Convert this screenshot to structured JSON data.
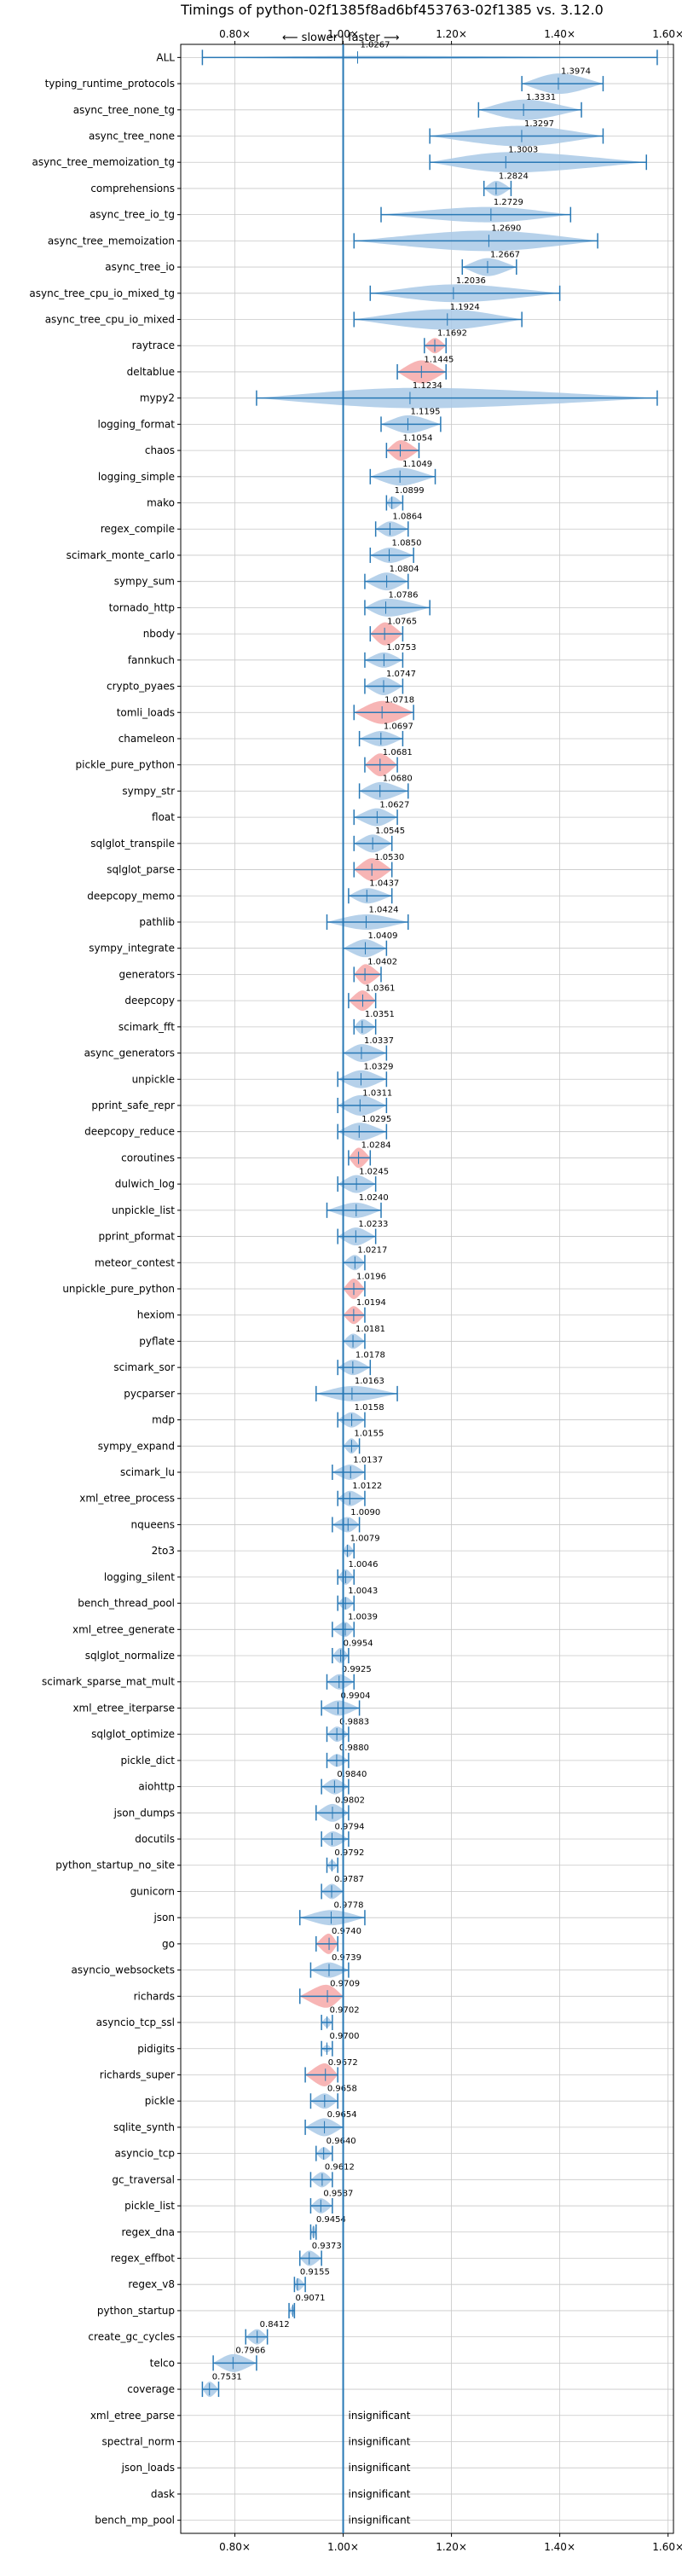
{
  "chart_data": {
    "type": "violin",
    "title": "Timings of python-02f1385f8ad6bf453763-02f1385 vs. 3.12.0",
    "direction_left": "⟵ slower",
    "direction_separator": "|",
    "direction_right": "faster ⟶",
    "xlabel": "",
    "ylabel": "",
    "xlim": [
      0.7,
      1.61
    ],
    "x_ticks": [
      0.8,
      1.0,
      1.2,
      1.4,
      1.6
    ],
    "x_tick_labels": [
      "0.80×",
      "1.00×",
      "1.20×",
      "1.40×",
      "1.60×"
    ],
    "grid": true,
    "reference_line": 1.0,
    "insignificant_label": "insignificant",
    "colors": {
      "normal": "#a9c9e6",
      "highlight": "#f6a8a8",
      "whisker": "#2878b5",
      "grid": "#c8c8c8"
    },
    "benchmarks": [
      {
        "name": "ALL",
        "value": 1.0267,
        "value_label": "1.0267",
        "min": 0.74,
        "max": 1.58,
        "width": 0.12,
        "highlight": false
      },
      {
        "name": "typing_runtime_protocols",
        "value": 1.3974,
        "value_label": "1.3974",
        "min": 1.33,
        "max": 1.48,
        "width": 0.8,
        "highlight": false
      },
      {
        "name": "async_tree_none_tg",
        "value": 1.3331,
        "value_label": "1.3331",
        "min": 1.25,
        "max": 1.44,
        "width": 0.8,
        "highlight": false
      },
      {
        "name": "async_tree_none",
        "value": 1.3297,
        "value_label": "1.3297",
        "min": 1.16,
        "max": 1.48,
        "width": 0.8,
        "highlight": false
      },
      {
        "name": "async_tree_memoization_tg",
        "value": 1.3003,
        "value_label": "1.3003",
        "min": 1.16,
        "max": 1.56,
        "width": 0.8,
        "highlight": false
      },
      {
        "name": "comprehensions",
        "value": 1.2824,
        "value_label": "1.2824",
        "min": 1.26,
        "max": 1.31,
        "width": 0.6,
        "highlight": false
      },
      {
        "name": "async_tree_io_tg",
        "value": 1.2729,
        "value_label": "1.2729",
        "min": 1.07,
        "max": 1.42,
        "width": 0.6,
        "highlight": false
      },
      {
        "name": "async_tree_memoization",
        "value": 1.269,
        "value_label": "1.2690",
        "min": 1.02,
        "max": 1.47,
        "width": 0.8,
        "highlight": false
      },
      {
        "name": "async_tree_io",
        "value": 1.2667,
        "value_label": "1.2667",
        "min": 1.22,
        "max": 1.32,
        "width": 0.7,
        "highlight": false
      },
      {
        "name": "async_tree_cpu_io_mixed_tg",
        "value": 1.2036,
        "value_label": "1.2036",
        "min": 1.05,
        "max": 1.4,
        "width": 0.7,
        "highlight": false
      },
      {
        "name": "async_tree_cpu_io_mixed",
        "value": 1.1924,
        "value_label": "1.1924",
        "min": 1.02,
        "max": 1.33,
        "width": 0.8,
        "highlight": false
      },
      {
        "name": "raytrace",
        "value": 1.1692,
        "value_label": "1.1692",
        "min": 1.15,
        "max": 1.19,
        "width": 0.6,
        "highlight": true
      },
      {
        "name": "deltablue",
        "value": 1.1445,
        "value_label": "1.1445",
        "min": 1.1,
        "max": 1.19,
        "width": 0.9,
        "highlight": true
      },
      {
        "name": "mypy2",
        "value": 1.1234,
        "value_label": "1.1234",
        "min": 0.84,
        "max": 1.58,
        "width": 0.8,
        "highlight": false
      },
      {
        "name": "logging_format",
        "value": 1.1195,
        "value_label": "1.1195",
        "min": 1.07,
        "max": 1.18,
        "width": 0.7,
        "highlight": false
      },
      {
        "name": "chaos",
        "value": 1.1054,
        "value_label": "1.1054",
        "min": 1.08,
        "max": 1.14,
        "width": 0.8,
        "highlight": true
      },
      {
        "name": "logging_simple",
        "value": 1.1049,
        "value_label": "1.1049",
        "min": 1.05,
        "max": 1.17,
        "width": 0.7,
        "highlight": false
      },
      {
        "name": "mako",
        "value": 1.0899,
        "value_label": "1.0899",
        "min": 1.08,
        "max": 1.11,
        "width": 0.5,
        "highlight": false
      },
      {
        "name": "regex_compile",
        "value": 1.0864,
        "value_label": "1.0864",
        "min": 1.06,
        "max": 1.12,
        "width": 0.6,
        "highlight": false
      },
      {
        "name": "scimark_monte_carlo",
        "value": 1.085,
        "value_label": "1.0850",
        "min": 1.05,
        "max": 1.13,
        "width": 0.6,
        "highlight": false
      },
      {
        "name": "sympy_sum",
        "value": 1.0804,
        "value_label": "1.0804",
        "min": 1.04,
        "max": 1.12,
        "width": 0.7,
        "highlight": false
      },
      {
        "name": "tornado_http",
        "value": 1.0786,
        "value_label": "1.0786",
        "min": 1.04,
        "max": 1.16,
        "width": 0.7,
        "highlight": false
      },
      {
        "name": "nbody",
        "value": 1.0765,
        "value_label": "1.0765",
        "min": 1.05,
        "max": 1.11,
        "width": 0.9,
        "highlight": true
      },
      {
        "name": "fannkuch",
        "value": 1.0753,
        "value_label": "1.0753",
        "min": 1.04,
        "max": 1.11,
        "width": 0.6,
        "highlight": false
      },
      {
        "name": "crypto_pyaes",
        "value": 1.0747,
        "value_label": "1.0747",
        "min": 1.04,
        "max": 1.11,
        "width": 0.7,
        "highlight": false
      },
      {
        "name": "tomli_loads",
        "value": 1.0718,
        "value_label": "1.0718",
        "min": 1.02,
        "max": 1.13,
        "width": 0.9,
        "highlight": true
      },
      {
        "name": "chameleon",
        "value": 1.0697,
        "value_label": "1.0697",
        "min": 1.03,
        "max": 1.11,
        "width": 0.6,
        "highlight": false
      },
      {
        "name": "pickle_pure_python",
        "value": 1.0681,
        "value_label": "1.0681",
        "min": 1.04,
        "max": 1.1,
        "width": 0.9,
        "highlight": true
      },
      {
        "name": "sympy_str",
        "value": 1.068,
        "value_label": "1.0680",
        "min": 1.03,
        "max": 1.12,
        "width": 0.7,
        "highlight": false
      },
      {
        "name": "float",
        "value": 1.0627,
        "value_label": "1.0627",
        "min": 1.02,
        "max": 1.1,
        "width": 0.7,
        "highlight": false
      },
      {
        "name": "sqlglot_transpile",
        "value": 1.0545,
        "value_label": "1.0545",
        "min": 1.02,
        "max": 1.09,
        "width": 0.7,
        "highlight": false
      },
      {
        "name": "sqlglot_parse",
        "value": 1.053,
        "value_label": "1.0530",
        "min": 1.02,
        "max": 1.09,
        "width": 0.9,
        "highlight": true
      },
      {
        "name": "deepcopy_memo",
        "value": 1.0437,
        "value_label": "1.0437",
        "min": 1.01,
        "max": 1.09,
        "width": 0.6,
        "highlight": false
      },
      {
        "name": "pathlib",
        "value": 1.0424,
        "value_label": "1.0424",
        "min": 0.97,
        "max": 1.12,
        "width": 0.6,
        "highlight": false
      },
      {
        "name": "sympy_integrate",
        "value": 1.0409,
        "value_label": "1.0409",
        "min": 1.0,
        "max": 1.08,
        "width": 0.7,
        "highlight": false
      },
      {
        "name": "generators",
        "value": 1.0402,
        "value_label": "1.0402",
        "min": 1.02,
        "max": 1.07,
        "width": 0.8,
        "highlight": true
      },
      {
        "name": "deepcopy",
        "value": 1.0361,
        "value_label": "1.0361",
        "min": 1.01,
        "max": 1.06,
        "width": 0.8,
        "highlight": true
      },
      {
        "name": "scimark_fft",
        "value": 1.0351,
        "value_label": "1.0351",
        "min": 1.02,
        "max": 1.06,
        "width": 0.6,
        "highlight": false
      },
      {
        "name": "async_generators",
        "value": 1.0337,
        "value_label": "1.0337",
        "min": 1.0,
        "max": 1.08,
        "width": 0.7,
        "highlight": false
      },
      {
        "name": "unpickle",
        "value": 1.0329,
        "value_label": "1.0329",
        "min": 0.99,
        "max": 1.08,
        "width": 0.7,
        "highlight": false
      },
      {
        "name": "pprint_safe_repr",
        "value": 1.0311,
        "value_label": "1.0311",
        "min": 0.99,
        "max": 1.08,
        "width": 0.8,
        "highlight": false
      },
      {
        "name": "deepcopy_reduce",
        "value": 1.0295,
        "value_label": "1.0295",
        "min": 0.99,
        "max": 1.08,
        "width": 0.7,
        "highlight": false
      },
      {
        "name": "coroutines",
        "value": 1.0284,
        "value_label": "1.0284",
        "min": 1.01,
        "max": 1.05,
        "width": 0.8,
        "highlight": true
      },
      {
        "name": "dulwich_log",
        "value": 1.0245,
        "value_label": "1.0245",
        "min": 0.99,
        "max": 1.06,
        "width": 0.7,
        "highlight": false
      },
      {
        "name": "unpickle_list",
        "value": 1.024,
        "value_label": "1.0240",
        "min": 0.97,
        "max": 1.07,
        "width": 0.6,
        "highlight": false
      },
      {
        "name": "pprint_pformat",
        "value": 1.0233,
        "value_label": "1.0233",
        "min": 0.99,
        "max": 1.06,
        "width": 0.7,
        "highlight": false
      },
      {
        "name": "meteor_contest",
        "value": 1.0217,
        "value_label": "1.0217",
        "min": 1.0,
        "max": 1.04,
        "width": 0.6,
        "highlight": false
      },
      {
        "name": "unpickle_pure_python",
        "value": 1.0196,
        "value_label": "1.0196",
        "min": 1.0,
        "max": 1.04,
        "width": 0.8,
        "highlight": true
      },
      {
        "name": "hexiom",
        "value": 1.0194,
        "value_label": "1.0194",
        "min": 1.0,
        "max": 1.04,
        "width": 0.7,
        "highlight": true
      },
      {
        "name": "pyflate",
        "value": 1.0181,
        "value_label": "1.0181",
        "min": 1.0,
        "max": 1.04,
        "width": 0.6,
        "highlight": false
      },
      {
        "name": "scimark_sor",
        "value": 1.0178,
        "value_label": "1.0178",
        "min": 0.99,
        "max": 1.05,
        "width": 0.6,
        "highlight": false
      },
      {
        "name": "pycparser",
        "value": 1.0163,
        "value_label": "1.0163",
        "min": 0.95,
        "max": 1.1,
        "width": 0.6,
        "highlight": false
      },
      {
        "name": "mdp",
        "value": 1.0158,
        "value_label": "1.0158",
        "min": 0.99,
        "max": 1.04,
        "width": 0.6,
        "highlight": false
      },
      {
        "name": "sympy_expand",
        "value": 1.0155,
        "value_label": "1.0155",
        "min": 1.0,
        "max": 1.03,
        "width": 0.6,
        "highlight": false
      },
      {
        "name": "scimark_lu",
        "value": 1.0137,
        "value_label": "1.0137",
        "min": 0.98,
        "max": 1.04,
        "width": 0.6,
        "highlight": false
      },
      {
        "name": "xml_etree_process",
        "value": 1.0122,
        "value_label": "1.0122",
        "min": 0.99,
        "max": 1.04,
        "width": 0.6,
        "highlight": false
      },
      {
        "name": "nqueens",
        "value": 1.009,
        "value_label": "1.0090",
        "min": 0.98,
        "max": 1.03,
        "width": 0.6,
        "highlight": false
      },
      {
        "name": "2to3",
        "value": 1.0079,
        "value_label": "1.0079",
        "min": 1.0,
        "max": 1.02,
        "width": 0.5,
        "highlight": false
      },
      {
        "name": "logging_silent",
        "value": 1.0046,
        "value_label": "1.0046",
        "min": 0.99,
        "max": 1.02,
        "width": 0.6,
        "highlight": false
      },
      {
        "name": "bench_thread_pool",
        "value": 1.0043,
        "value_label": "1.0043",
        "min": 0.99,
        "max": 1.02,
        "width": 0.5,
        "highlight": false
      },
      {
        "name": "xml_etree_generate",
        "value": 1.0039,
        "value_label": "1.0039",
        "min": 0.98,
        "max": 1.02,
        "width": 0.6,
        "highlight": false
      },
      {
        "name": "sqlglot_normalize",
        "value": 0.9954,
        "value_label": "0.9954",
        "min": 0.98,
        "max": 1.01,
        "width": 0.6,
        "highlight": false
      },
      {
        "name": "scimark_sparse_mat_mult",
        "value": 0.9925,
        "value_label": "0.9925",
        "min": 0.97,
        "max": 1.02,
        "width": 0.6,
        "highlight": false
      },
      {
        "name": "xml_etree_iterparse",
        "value": 0.9904,
        "value_label": "0.9904",
        "min": 0.96,
        "max": 1.03,
        "width": 0.6,
        "highlight": false
      },
      {
        "name": "sqlglot_optimize",
        "value": 0.9883,
        "value_label": "0.9883",
        "min": 0.97,
        "max": 1.01,
        "width": 0.6,
        "highlight": false
      },
      {
        "name": "pickle_dict",
        "value": 0.988,
        "value_label": "0.9880",
        "min": 0.97,
        "max": 1.01,
        "width": 0.5,
        "highlight": false
      },
      {
        "name": "aiohttp",
        "value": 0.984,
        "value_label": "0.9840",
        "min": 0.96,
        "max": 1.01,
        "width": 0.6,
        "highlight": false
      },
      {
        "name": "json_dumps",
        "value": 0.9802,
        "value_label": "0.9802",
        "min": 0.95,
        "max": 1.01,
        "width": 0.7,
        "highlight": false
      },
      {
        "name": "docutils",
        "value": 0.9794,
        "value_label": "0.9794",
        "min": 0.96,
        "max": 1.01,
        "width": 0.6,
        "highlight": false
      },
      {
        "name": "python_startup_no_site",
        "value": 0.9792,
        "value_label": "0.9792",
        "min": 0.97,
        "max": 0.99,
        "width": 0.4,
        "highlight": false
      },
      {
        "name": "gunicorn",
        "value": 0.9787,
        "value_label": "0.9787",
        "min": 0.96,
        "max": 1.0,
        "width": 0.6,
        "highlight": false
      },
      {
        "name": "json",
        "value": 0.9778,
        "value_label": "0.9778",
        "min": 0.92,
        "max": 1.04,
        "width": 0.6,
        "highlight": false
      },
      {
        "name": "go",
        "value": 0.974,
        "value_label": "0.9740",
        "min": 0.95,
        "max": 0.99,
        "width": 0.8,
        "highlight": true
      },
      {
        "name": "asyncio_websockets",
        "value": 0.9739,
        "value_label": "0.9739",
        "min": 0.94,
        "max": 1.01,
        "width": 0.6,
        "highlight": false
      },
      {
        "name": "richards",
        "value": 0.9709,
        "value_label": "0.9709",
        "min": 0.92,
        "max": 1.0,
        "width": 0.9,
        "highlight": true
      },
      {
        "name": "asyncio_tcp_ssl",
        "value": 0.9702,
        "value_label": "0.9702",
        "min": 0.96,
        "max": 0.98,
        "width": 0.4,
        "highlight": false
      },
      {
        "name": "pidigits",
        "value": 0.97,
        "value_label": "0.9700",
        "min": 0.96,
        "max": 0.98,
        "width": 0.3,
        "highlight": false
      },
      {
        "name": "richards_super",
        "value": 0.9672,
        "value_label": "0.9672",
        "min": 0.93,
        "max": 0.99,
        "width": 0.9,
        "highlight": true
      },
      {
        "name": "pickle",
        "value": 0.9658,
        "value_label": "0.9658",
        "min": 0.94,
        "max": 0.99,
        "width": 0.6,
        "highlight": false
      },
      {
        "name": "sqlite_synth",
        "value": 0.9654,
        "value_label": "0.9654",
        "min": 0.93,
        "max": 1.0,
        "width": 0.7,
        "highlight": false
      },
      {
        "name": "asyncio_tcp",
        "value": 0.964,
        "value_label": "0.9640",
        "min": 0.95,
        "max": 0.98,
        "width": 0.5,
        "highlight": false
      },
      {
        "name": "gc_traversal",
        "value": 0.9612,
        "value_label": "0.9612",
        "min": 0.94,
        "max": 0.98,
        "width": 0.6,
        "highlight": false
      },
      {
        "name": "pickle_list",
        "value": 0.9587,
        "value_label": "0.9587",
        "min": 0.94,
        "max": 0.98,
        "width": 0.6,
        "highlight": false
      },
      {
        "name": "regex_dna",
        "value": 0.9454,
        "value_label": "0.9454",
        "min": 0.94,
        "max": 0.95,
        "width": 0.5,
        "highlight": false
      },
      {
        "name": "regex_effbot",
        "value": 0.9373,
        "value_label": "0.9373",
        "min": 0.92,
        "max": 0.96,
        "width": 0.6,
        "highlight": false
      },
      {
        "name": "regex_v8",
        "value": 0.9155,
        "value_label": "0.9155",
        "min": 0.91,
        "max": 0.93,
        "width": 0.5,
        "highlight": false
      },
      {
        "name": "python_startup",
        "value": 0.9071,
        "value_label": "0.9071",
        "min": 0.9,
        "max": 0.91,
        "width": 0.4,
        "highlight": false
      },
      {
        "name": "create_gc_cycles",
        "value": 0.8412,
        "value_label": "0.8412",
        "min": 0.82,
        "max": 0.86,
        "width": 0.6,
        "highlight": false
      },
      {
        "name": "telco",
        "value": 0.7966,
        "value_label": "0.7966",
        "min": 0.76,
        "max": 0.84,
        "width": 0.7,
        "highlight": false
      },
      {
        "name": "coverage",
        "value": 0.7531,
        "value_label": "0.7531",
        "min": 0.74,
        "max": 0.77,
        "width": 0.6,
        "highlight": false
      },
      {
        "name": "xml_etree_parse",
        "value": null,
        "value_label": "insignificant",
        "insignificant": true
      },
      {
        "name": "spectral_norm",
        "value": null,
        "value_label": "insignificant",
        "insignificant": true
      },
      {
        "name": "json_loads",
        "value": null,
        "value_label": "insignificant",
        "insignificant": true
      },
      {
        "name": "dask",
        "value": null,
        "value_label": "insignificant",
        "insignificant": true
      },
      {
        "name": "bench_mp_pool",
        "value": null,
        "value_label": "insignificant",
        "insignificant": true
      }
    ]
  }
}
